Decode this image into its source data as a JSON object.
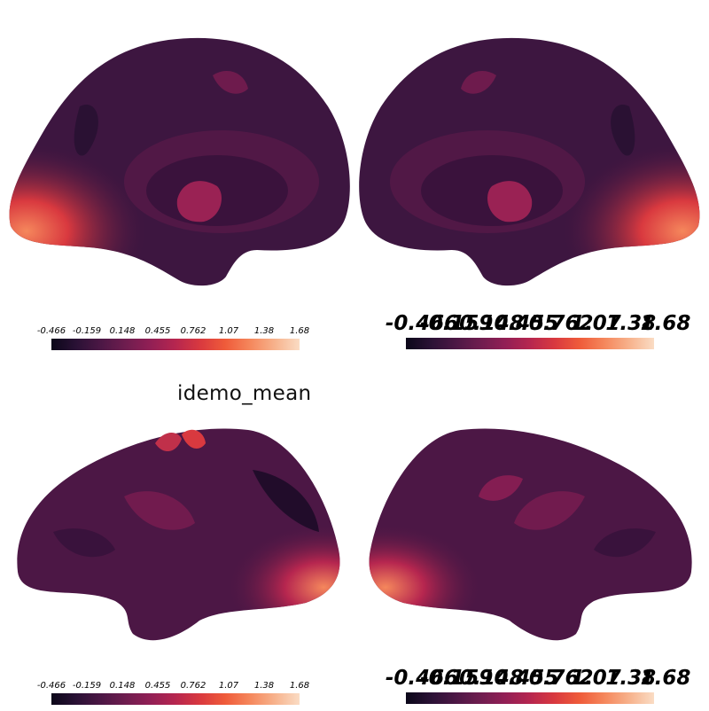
{
  "figure": {
    "title": "idemo_mean",
    "colormap": [
      "#0b0719",
      "#2a1135",
      "#4c1745",
      "#6f1d4f",
      "#921f55",
      "#b6264f",
      "#d9393f",
      "#ef5b3a",
      "#f5875c",
      "#f7b28c",
      "#fadcc4"
    ]
  },
  "panels": [
    {
      "id": "top-left-medial",
      "view": "medial",
      "hemisphere": "left"
    },
    {
      "id": "top-right-medial",
      "view": "medial",
      "hemisphere": "right"
    },
    {
      "id": "bottom-left-lateral",
      "view": "lateral",
      "hemisphere": "left"
    },
    {
      "id": "bottom-right-lateral",
      "view": "lateral",
      "hemisphere": "right"
    }
  ],
  "colorbar": {
    "tick_labels": [
      "-0.466",
      "-0.159",
      "0.148",
      "0.455",
      "0.762",
      "1.07",
      "1.38",
      "1.68"
    ]
  }
}
